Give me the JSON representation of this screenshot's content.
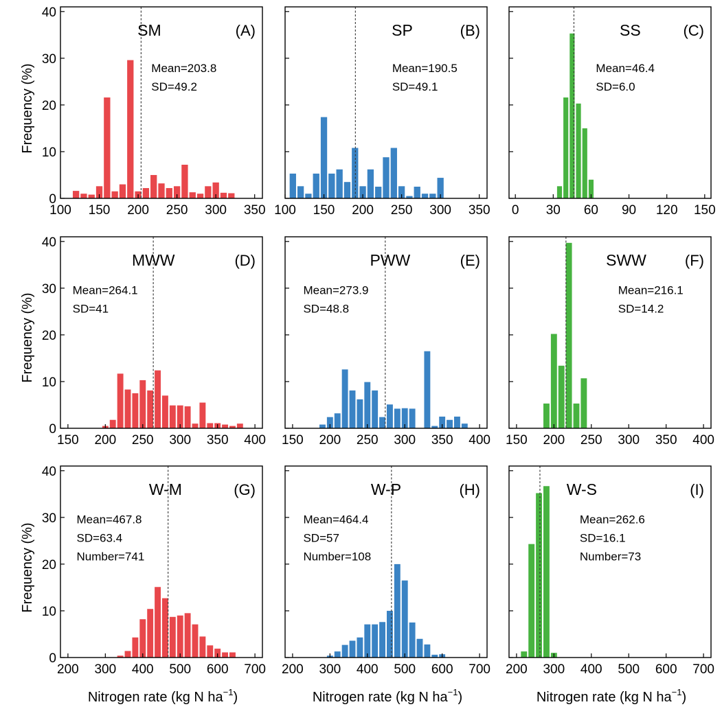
{
  "colors": {
    "red": "#e8474b",
    "blue": "#3a83c4",
    "green": "#47b340"
  },
  "ylabel": "Frequency (%)",
  "xlabel": {
    "main": "Nitrogen rate (kg N ha",
    "sup": "−1",
    "close": ")"
  },
  "chart_data": [
    {
      "type": "bar",
      "code": "SM",
      "letter": "(A)",
      "color": "red",
      "xlim": [
        100,
        360
      ],
      "xticks": [
        100,
        150,
        200,
        250,
        300,
        350
      ],
      "ylim": [
        0,
        41
      ],
      "yticks": [
        0,
        10,
        20,
        30,
        40
      ],
      "bin_width": 10,
      "x": [
        120,
        130,
        140,
        150,
        160,
        170,
        180,
        190,
        200,
        210,
        220,
        230,
        240,
        250,
        260,
        270,
        280,
        290,
        300,
        310,
        320
      ],
      "values": [
        1.6,
        1.0,
        0.8,
        2.6,
        21.6,
        1.5,
        3.0,
        29.6,
        1.5,
        2.2,
        5.0,
        3.2,
        2.2,
        2.6,
        7.2,
        1.3,
        1.0,
        2.6,
        3.4,
        1.2,
        1.1
      ],
      "mean": 203.8,
      "stats": [
        "Mean=203.8",
        "SD=49.2"
      ]
    },
    {
      "type": "bar",
      "code": "SP",
      "letter": "(B)",
      "color": "blue",
      "xlim": [
        100,
        360
      ],
      "xticks": [
        100,
        150,
        200,
        250,
        300,
        350
      ],
      "ylim": [
        0,
        41
      ],
      "yticks": [
        0,
        10,
        20,
        30,
        40
      ],
      "bin_width": 10,
      "x": [
        110,
        120,
        130,
        140,
        150,
        160,
        170,
        180,
        190,
        200,
        210,
        220,
        230,
        240,
        250,
        260,
        270,
        280,
        290,
        300
      ],
      "values": [
        5.3,
        2.6,
        1.0,
        5.3,
        17.4,
        5.3,
        6.2,
        3.5,
        10.8,
        2.6,
        6.2,
        2.5,
        8.8,
        10.8,
        2.6,
        0.5,
        2.5,
        1.0,
        1.0,
        4.4
      ],
      "mean": 190.5,
      "stats": [
        "Mean=190.5",
        "SD=49.1"
      ]
    },
    {
      "type": "bar",
      "code": "SS",
      "letter": "(C)",
      "color": "green",
      "xlim": [
        -5,
        155
      ],
      "xticks": [
        0,
        30,
        60,
        90,
        120,
        150
      ],
      "ylim": [
        0,
        41
      ],
      "yticks": [
        0,
        10,
        20,
        30,
        40
      ],
      "bin_width": 5,
      "x": [
        35,
        40,
        45,
        50,
        55,
        60
      ],
      "values": [
        2.6,
        21.6,
        35.3,
        20.3,
        15.0,
        4.0
      ],
      "mean": 46.4,
      "stats": [
        "Mean=46.4",
        "SD=6.0"
      ]
    },
    {
      "type": "bar",
      "code": "MWW",
      "letter": "(D)",
      "color": "red",
      "xlim": [
        140,
        410
      ],
      "xticks": [
        150,
        200,
        250,
        300,
        350,
        400
      ],
      "ylim": [
        0,
        41
      ],
      "yticks": [
        0,
        10,
        20,
        30,
        40
      ],
      "bin_width": 10,
      "x": [
        200,
        210,
        220,
        230,
        240,
        250,
        260,
        270,
        280,
        290,
        300,
        310,
        320,
        330,
        340,
        350,
        360,
        370,
        380
      ],
      "values": [
        0.5,
        1.8,
        11.7,
        8.3,
        7.5,
        10.3,
        8.1,
        12.4,
        7.0,
        4.9,
        4.9,
        4.7,
        1.0,
        5.5,
        1.1,
        1.1,
        0.8,
        0.5,
        1.0
      ],
      "mean": 264.1,
      "stats": [
        "Mean=264.1",
        "SD=41"
      ]
    },
    {
      "type": "bar",
      "code": "PWW",
      "letter": "(E)",
      "color": "blue",
      "xlim": [
        140,
        410
      ],
      "xticks": [
        150,
        200,
        250,
        300,
        350,
        400
      ],
      "ylim": [
        0,
        41
      ],
      "yticks": [
        0,
        10,
        20,
        30,
        40
      ],
      "bin_width": 10,
      "x": [
        190,
        200,
        210,
        220,
        230,
        240,
        250,
        260,
        270,
        280,
        290,
        300,
        310,
        320,
        330,
        340,
        350,
        360,
        370,
        380
      ],
      "values": [
        0.8,
        2.4,
        3.2,
        12.6,
        8.1,
        6.2,
        9.9,
        8.1,
        2.4,
        5.1,
        4.2,
        4.3,
        4.2,
        0,
        16.5,
        0.5,
        2.5,
        1.8,
        2.5,
        1.0
      ],
      "mean": 273.9,
      "stats": [
        "Mean=273.9",
        "SD=48.8"
      ]
    },
    {
      "type": "bar",
      "code": "SWW",
      "letter": "(F)",
      "color": "green",
      "xlim": [
        140,
        410
      ],
      "xticks": [
        150,
        200,
        250,
        300,
        350,
        400
      ],
      "ylim": [
        0,
        41
      ],
      "yticks": [
        0,
        10,
        20,
        30,
        40
      ],
      "bin_width": 10,
      "x": [
        190,
        200,
        210,
        220,
        230,
        240
      ],
      "values": [
        5.3,
        20.2,
        13.4,
        39.7,
        5.3,
        10.7
      ],
      "mean": 216.1,
      "stats": [
        "Mean=216.1",
        "SD=14.2"
      ]
    },
    {
      "type": "bar",
      "code": "W-M",
      "letter": "(G)",
      "color": "red",
      "xlim": [
        180,
        720
      ],
      "xticks": [
        200,
        300,
        400,
        500,
        600,
        700
      ],
      "ylim": [
        0,
        41
      ],
      "yticks": [
        0,
        10,
        20,
        30,
        40
      ],
      "bin_width": 20,
      "x": [
        340,
        360,
        380,
        400,
        420,
        440,
        460,
        480,
        500,
        520,
        540,
        560,
        580,
        600,
        620,
        640
      ],
      "values": [
        0.4,
        1.4,
        4.3,
        8.2,
        10.4,
        15.1,
        12.7,
        8.7,
        9.0,
        9.5,
        7.1,
        4.5,
        2.6,
        1.9,
        1.1,
        1.1
      ],
      "mean": 467.8,
      "stats": [
        "Mean=467.8",
        "SD=63.4",
        "Number=741"
      ]
    },
    {
      "type": "bar",
      "code": "W-P",
      "letter": "(H)",
      "color": "blue",
      "xlim": [
        180,
        720
      ],
      "xticks": [
        200,
        300,
        400,
        500,
        600,
        700
      ],
      "ylim": [
        0,
        41
      ],
      "yticks": [
        0,
        10,
        20,
        30,
        40
      ],
      "bin_width": 20,
      "x": [
        300,
        320,
        340,
        360,
        380,
        400,
        420,
        440,
        460,
        480,
        500,
        520,
        540,
        560,
        580,
        600
      ],
      "values": [
        0.4,
        1.3,
        2.7,
        3.6,
        4.3,
        7.1,
        7.1,
        7.6,
        10.0,
        20.0,
        16.5,
        7.5,
        4.0,
        2.8,
        0.6,
        0.7
      ],
      "mean": 464.4,
      "stats": [
        "Mean=464.4",
        "SD=57",
        "Number=108"
      ]
    },
    {
      "type": "bar",
      "code": "W-S",
      "letter": "(I)",
      "color": "green",
      "xlim": [
        180,
        720
      ],
      "xticks": [
        200,
        300,
        400,
        500,
        600,
        700
      ],
      "ylim": [
        0,
        41
      ],
      "yticks": [
        0,
        10,
        20,
        30,
        40
      ],
      "bin_width": 20,
      "x": [
        220,
        240,
        260,
        280,
        300
      ],
      "values": [
        1.3,
        24.3,
        35.2,
        36.7,
        1.0
      ],
      "mean": 262.6,
      "stats": [
        "Mean=262.6",
        "SD=16.1",
        "Number=73"
      ]
    }
  ]
}
